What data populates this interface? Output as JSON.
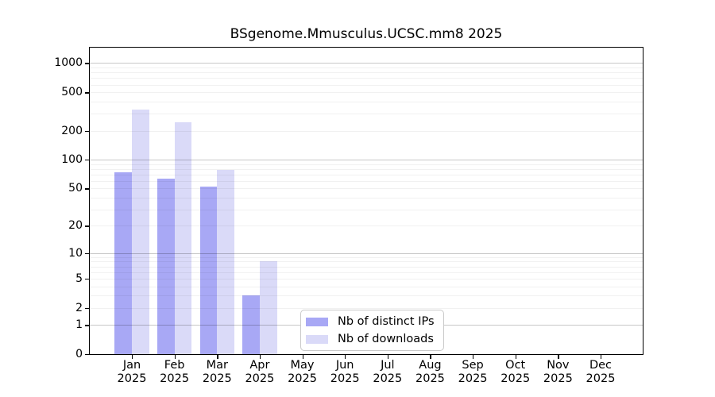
{
  "chart_data": {
    "type": "bar",
    "title": "BSgenome.Mmusculus.UCSC.mm8 2025",
    "xlabel": "",
    "ylabel": "",
    "y_scale": "log10(value+1)",
    "ylim": [
      0,
      1450
    ],
    "grid": "horizontal",
    "legend_position": "inside-bottom-center",
    "x_tick_labels": [
      [
        "Jan",
        "2025"
      ],
      [
        "Feb",
        "2025"
      ],
      [
        "Mar",
        "2025"
      ],
      [
        "Apr",
        "2025"
      ],
      [
        "May",
        "2025"
      ],
      [
        "Jun",
        "2025"
      ],
      [
        "Jul",
        "2025"
      ],
      [
        "Aug",
        "2025"
      ],
      [
        "Sep",
        "2025"
      ],
      [
        "Oct",
        "2025"
      ],
      [
        "Nov",
        "2025"
      ],
      [
        "Dec",
        "2025"
      ]
    ],
    "y_tick_labels": [
      "0",
      "1",
      "2",
      "5",
      "10",
      "20",
      "50",
      "100",
      "200",
      "500",
      "1000"
    ],
    "y_tick_values": [
      0,
      1,
      2,
      5,
      10,
      20,
      50,
      100,
      200,
      500,
      1000
    ],
    "grid_major_values": [
      1,
      10,
      100,
      1000
    ],
    "grid_minor_values": [
      2,
      3,
      4,
      5,
      6,
      7,
      8,
      9,
      20,
      30,
      40,
      50,
      60,
      70,
      80,
      90,
      200,
      300,
      400,
      500,
      600,
      700,
      800,
      900
    ],
    "series": [
      {
        "name": "Nb of distinct IPs",
        "color": "#a8a8f5",
        "values": [
          74,
          64,
          52,
          3,
          0,
          0,
          0,
          0,
          0,
          0,
          0,
          0
        ]
      },
      {
        "name": "Nb of downloads",
        "color": "#dadaf8",
        "values": [
          332,
          247,
          79,
          8,
          0,
          0,
          0,
          0,
          0,
          0,
          0,
          0
        ]
      }
    ]
  }
}
